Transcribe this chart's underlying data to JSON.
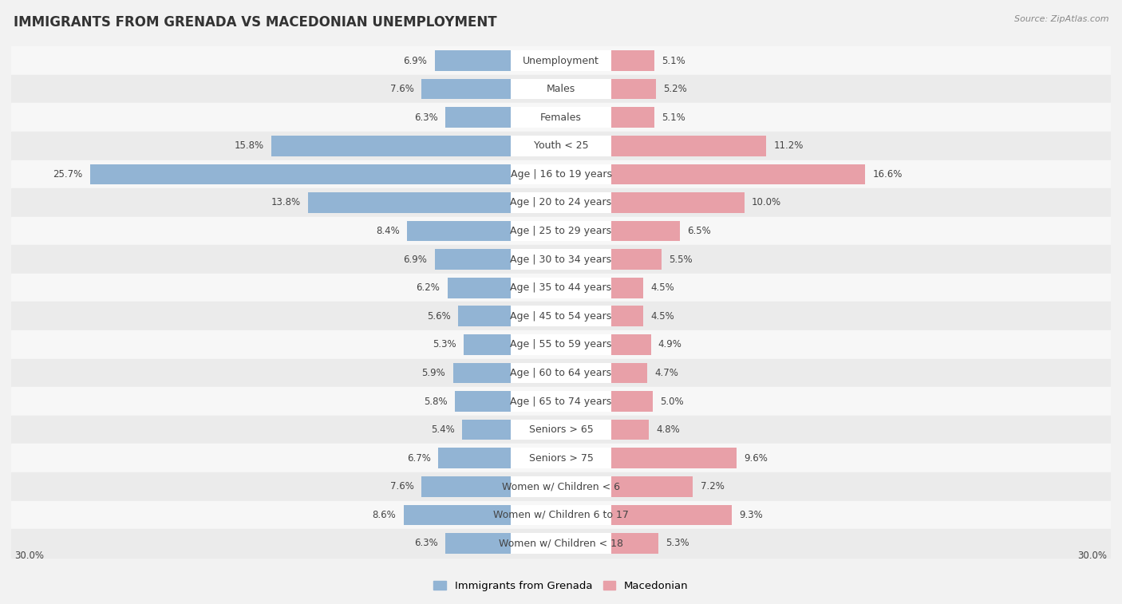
{
  "title": "IMMIGRANTS FROM GRENADA VS MACEDONIAN UNEMPLOYMENT",
  "source": "Source: ZipAtlas.com",
  "categories": [
    "Unemployment",
    "Males",
    "Females",
    "Youth < 25",
    "Age | 16 to 19 years",
    "Age | 20 to 24 years",
    "Age | 25 to 29 years",
    "Age | 30 to 34 years",
    "Age | 35 to 44 years",
    "Age | 45 to 54 years",
    "Age | 55 to 59 years",
    "Age | 60 to 64 years",
    "Age | 65 to 74 years",
    "Seniors > 65",
    "Seniors > 75",
    "Women w/ Children < 6",
    "Women w/ Children 6 to 17",
    "Women w/ Children < 18"
  ],
  "grenada_values": [
    6.9,
    7.6,
    6.3,
    15.8,
    25.7,
    13.8,
    8.4,
    6.9,
    6.2,
    5.6,
    5.3,
    5.9,
    5.8,
    5.4,
    6.7,
    7.6,
    8.6,
    6.3
  ],
  "macedonian_values": [
    5.1,
    5.2,
    5.1,
    11.2,
    16.6,
    10.0,
    6.5,
    5.5,
    4.5,
    4.5,
    4.9,
    4.7,
    5.0,
    4.8,
    9.6,
    7.2,
    9.3,
    5.3
  ],
  "grenada_color": "#92b4d4",
  "macedonian_color": "#e8a0a8",
  "max_value": 30.0,
  "bg_light": "#f2f2f2",
  "bg_dark": "#e2e2e2",
  "title_fontsize": 12,
  "label_fontsize": 9,
  "value_fontsize": 8.5,
  "legend_label_grenada": "Immigrants from Grenada",
  "legend_label_macedonian": "Macedonian"
}
